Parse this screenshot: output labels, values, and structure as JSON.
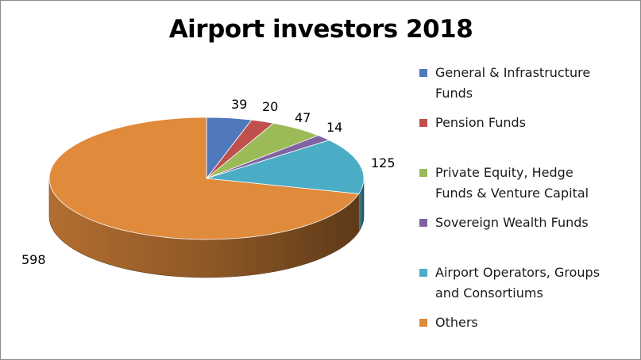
{
  "chart_data": {
    "type": "pie",
    "title": "Airport investors 2018",
    "legend_position": "right",
    "three_d": true,
    "slices": [
      {
        "name": "General & Infrastructure Funds",
        "name_lines": [
          "General & Infrastructure",
          "Funds"
        ],
        "value": 39,
        "color": "#4f79bb"
      },
      {
        "name": "Pension Funds",
        "name_lines": [
          "Pension Funds"
        ],
        "value": 20,
        "color": "#c0504d"
      },
      {
        "name": "Private Equity, Hedge Funds & Venture Capital",
        "name_lines": [
          "Private Equity, Hedge",
          "Funds & Venture Capital"
        ],
        "value": 47,
        "color": "#9bbb59"
      },
      {
        "name": "Sovereign Wealth Funds",
        "name_lines": [
          "Sovereign Wealth Funds"
        ],
        "value": 14,
        "color": "#8064a2"
      },
      {
        "name": "Airport Operators, Groups and Consortiums",
        "name_lines": [
          "Airport Operators, Groups",
          "and Consortiums"
        ],
        "value": 125,
        "color": "#4bacc6"
      },
      {
        "name": "Others",
        "name_lines": [
          "Others"
        ],
        "value": 598,
        "color": "#e08a3c"
      }
    ]
  }
}
